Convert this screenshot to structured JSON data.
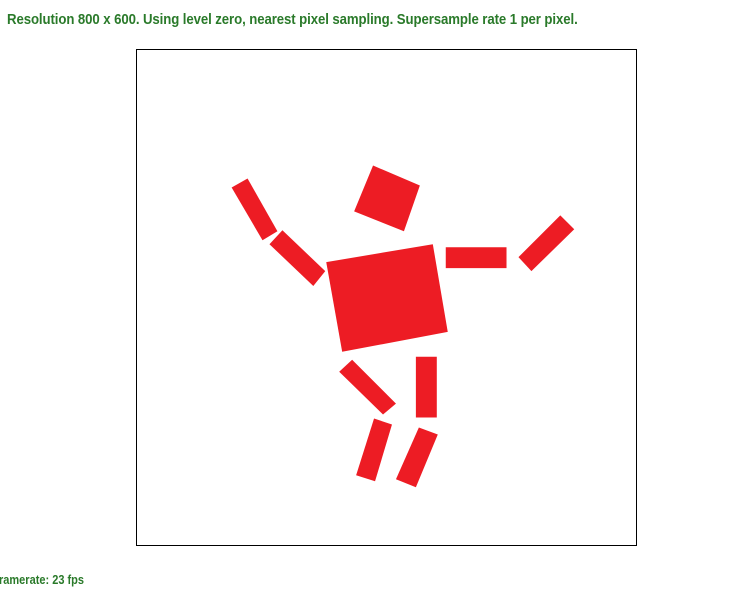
{
  "header": {
    "status_text": "Resolution 800 x 600. Using level zero, nearest pixel sampling. Supersample rate 1 per pixel."
  },
  "footer": {
    "framerate_text": "ramerate: 23 fps"
  },
  "colors": {
    "text_green": "#2a7a2a",
    "shape_red": "#ed1c24",
    "frame_border": "#000000",
    "background": "#ffffff"
  },
  "scene": {
    "figure_parts": [
      "head",
      "torso",
      "left-upper-arm",
      "left-forearm",
      "right-upper-arm",
      "right-forearm",
      "left-thigh",
      "left-shin",
      "right-thigh",
      "right-shin"
    ]
  }
}
